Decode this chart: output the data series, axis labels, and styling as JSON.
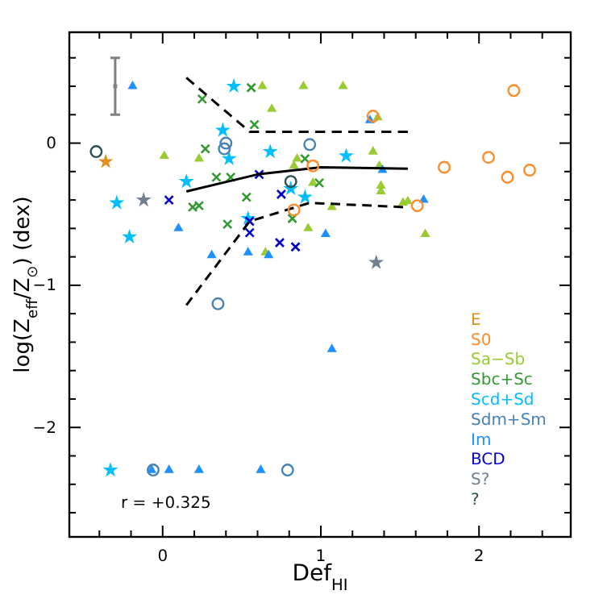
{
  "chart_data": {
    "type": "scatter",
    "xlabel": "Def$_{HI}$",
    "ylabel": "log(Z$_{eff}$/Z$_{⊙}$) (dex)",
    "xlim": [
      -0.59,
      2.58
    ],
    "ylim": [
      -2.77,
      0.78
    ],
    "xticks": [
      {
        "value": -0.4,
        "label": null
      },
      {
        "value": -0.2,
        "label": null
      },
      0,
      {
        "value": 0.2,
        "label": null
      },
      {
        "value": 0.4,
        "label": null
      },
      {
        "value": 0.6,
        "label": null
      },
      {
        "value": 0.8,
        "label": null
      },
      1,
      {
        "value": 1.2,
        "label": null
      },
      {
        "value": 1.4,
        "label": null
      },
      {
        "value": 1.6,
        "label": null
      },
      {
        "value": 1.8,
        "label": null
      },
      2,
      {
        "value": 2.2,
        "label": null
      },
      {
        "value": 2.4,
        "label": null
      }
    ],
    "yticks": [
      {
        "value": -2.6,
        "label": null
      },
      {
        "value": -2.4,
        "label": null
      },
      {
        "value": -2.2,
        "label": null
      },
      -2,
      {
        "value": -1.8,
        "label": null
      },
      {
        "value": -1.6,
        "label": null
      },
      {
        "value": -1.4,
        "label": null
      },
      {
        "value": -1.2,
        "label": null
      },
      -1,
      {
        "value": -0.8,
        "label": null
      },
      {
        "value": -0.6,
        "label": null
      },
      {
        "value": -0.4,
        "label": null
      },
      {
        "value": -0.2,
        "label": null
      },
      0,
      {
        "value": 0.2,
        "label": null
      },
      {
        "value": 0.4,
        "label": null
      },
      {
        "value": 0.6,
        "label": null
      }
    ],
    "grid": false,
    "legend": "bottom right",
    "annotations": [
      "r = +0.325"
    ],
    "series": [
      {
        "name": "E",
        "color": "#e0901e",
        "marker": "star",
        "x": [
          -0.36
        ],
        "values": [
          -0.13
        ]
      },
      {
        "name": "S0",
        "color": "#ff8c28",
        "marker": "circle",
        "x": [
          0.95,
          0.83,
          2.22,
          1.33,
          1.78,
          2.06,
          2.18,
          2.32,
          1.61
        ],
        "values": [
          -0.16,
          -0.47,
          0.37,
          0.19,
          -0.17,
          -0.1,
          -0.24,
          -0.19,
          -0.44
        ]
      },
      {
        "name": "Sa−Sb",
        "color": "#99cc33",
        "marker": "triangle",
        "x": [
          0.63,
          0.89,
          0.69,
          0.01,
          0.23,
          0.85,
          0.83,
          0.95,
          1.07,
          0.92,
          0.65,
          1.14,
          1.36,
          1.33,
          1.37,
          1.38,
          1.38,
          1.52,
          1.55,
          1.66
        ],
        "values": [
          0.4,
          0.4,
          0.24,
          -0.09,
          -0.11,
          -0.11,
          -0.16,
          -0.28,
          -0.45,
          -0.6,
          -0.77,
          0.4,
          0.18,
          -0.06,
          -0.16,
          -0.3,
          -0.34,
          -0.42,
          -0.41,
          -0.64
        ]
      },
      {
        "name": "Sbc+Sc",
        "color": "#339933",
        "marker": "cross",
        "x": [
          0.56,
          0.25,
          0.58,
          0.27,
          0.9,
          0.34,
          0.43,
          0.99,
          0.53,
          0.19,
          0.23,
          0.82,
          0.41
        ],
        "values": [
          0.39,
          0.31,
          0.13,
          -0.04,
          -0.11,
          -0.24,
          -0.24,
          -0.28,
          -0.38,
          -0.45,
          -0.44,
          -0.53,
          -0.57
        ]
      },
      {
        "name": "Scd+Sd",
        "color": "#00bfff",
        "marker": "star",
        "x": [
          -0.29,
          -0.21,
          0.45,
          0.38,
          0.42,
          0.68,
          0.15,
          0.81,
          0.9,
          0.54,
          1.16,
          -0.33
        ],
        "values": [
          -0.42,
          -0.66,
          0.4,
          0.09,
          -0.11,
          -0.06,
          -0.27,
          -0.32,
          -0.38,
          -0.53,
          -0.09,
          -2.3
        ]
      },
      {
        "name": "Sdm+Sm",
        "color": "#4682b4",
        "marker": "circle",
        "x": [
          0.4,
          0.39,
          0.93,
          0.35,
          -0.06,
          0.79
        ],
        "values": [
          0.0,
          -0.04,
          -0.01,
          -1.13,
          -2.3,
          -2.3
        ]
      },
      {
        "name": "Im",
        "color": "#1e90ff",
        "marker": "triangle",
        "x": [
          -0.19,
          0.1,
          0.31,
          1.03,
          0.54,
          0.67,
          1.31,
          1.39,
          1.65,
          1.07,
          -0.07,
          0.04,
          0.23,
          0.62
        ],
        "values": [
          0.4,
          -0.6,
          -0.79,
          -0.64,
          -0.77,
          -0.79,
          0.16,
          -0.19,
          -0.4,
          -1.45,
          -2.3,
          -2.3,
          -2.3,
          -2.3
        ]
      },
      {
        "name": "BCD",
        "color": "#0000cd",
        "marker": "cross",
        "x": [
          0.04,
          0.61,
          0.75,
          0.55,
          0.55,
          0.74,
          0.84
        ],
        "values": [
          -0.4,
          -0.22,
          -0.36,
          -0.55,
          -0.63,
          -0.7,
          -0.73
        ]
      },
      {
        "name": "S?",
        "color": "#708090",
        "marker": "star",
        "x": [
          -0.12,
          1.35
        ],
        "values": [
          -0.4,
          -0.84
        ]
      },
      {
        "name": "?",
        "color": "#2f4f4f",
        "marker": "circle",
        "x": [
          -0.42,
          0.81
        ],
        "values": [
          -0.06,
          -0.27
        ]
      },
      {
        "type": "scatter",
        "color": "#808080",
        "marker": "square",
        "x": [
          -0.3
        ],
        "values": [
          0.4
        ],
        "errors": [
          0.2
        ]
      },
      {
        "type": "line",
        "color": "#000000",
        "line_style": "solid",
        "marker": "none",
        "x": [
          0.15,
          0.6,
          1.0,
          1.55
        ],
        "values": [
          -0.34,
          -0.22,
          -0.17,
          -0.18
        ]
      },
      {
        "type": "line",
        "color": "#000000",
        "line_style": "dashed",
        "marker": "none",
        "x": [
          0.15,
          0.55,
          1.55
        ],
        "values": [
          0.46,
          0.08,
          0.08
        ]
      },
      {
        "type": "line",
        "color": "#000000",
        "line_style": "dashed",
        "marker": "none",
        "x": [
          0.15,
          0.55,
          0.93,
          1.52
        ],
        "values": [
          -1.14,
          -0.55,
          -0.42,
          -0.45
        ]
      }
    ]
  }
}
